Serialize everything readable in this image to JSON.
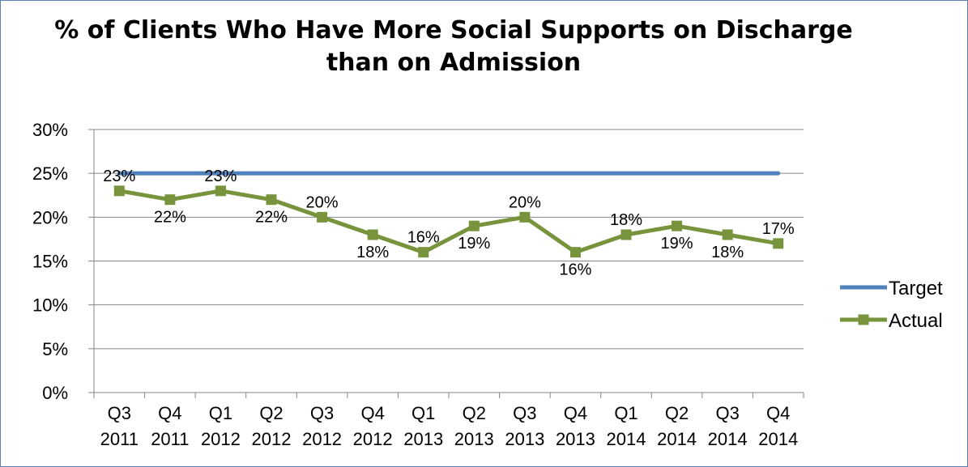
{
  "chart_data": {
    "type": "line",
    "title_lines": [
      "% of Clients Who Have More Social Supports on Discharge",
      "than on Admission"
    ],
    "categories": [
      [
        "Q3",
        "2011"
      ],
      [
        "Q4",
        "2011"
      ],
      [
        "Q1",
        "2012"
      ],
      [
        "Q2",
        "2012"
      ],
      [
        "Q3",
        "2012"
      ],
      [
        "Q4",
        "2012"
      ],
      [
        "Q1",
        "2013"
      ],
      [
        "Q2",
        "2013"
      ],
      [
        "Q3",
        "2013"
      ],
      [
        "Q4",
        "2013"
      ],
      [
        "Q1",
        "2014"
      ],
      [
        "Q2",
        "2014"
      ],
      [
        "Q3",
        "2014"
      ],
      [
        "Q4",
        "2014"
      ]
    ],
    "y_ticks": [
      "0%",
      "5%",
      "10%",
      "15%",
      "20%",
      "25%",
      "30%"
    ],
    "ylim": [
      0,
      30
    ],
    "grid": true,
    "legend_position": "right",
    "series": [
      {
        "name": "Target",
        "color": "#4f81bd",
        "marker": "none",
        "values": [
          25,
          25,
          25,
          25,
          25,
          25,
          25,
          25,
          25,
          25,
          25,
          25,
          25,
          25
        ]
      },
      {
        "name": "Actual",
        "color": "#77933c",
        "marker": "square",
        "values": [
          23,
          22,
          23,
          22,
          20,
          18,
          16,
          19,
          20,
          16,
          18,
          19,
          18,
          17
        ],
        "data_labels": [
          "23%",
          "22%",
          "23%",
          "22%",
          "20%",
          "18%",
          "16%",
          "19%",
          "20%",
          "16%",
          "18%",
          "19%",
          "18%",
          "17%"
        ],
        "label_positions": [
          "above",
          "below",
          "above",
          "below",
          "above",
          "below",
          "above",
          "below",
          "above",
          "below",
          "above",
          "below",
          "below",
          "above"
        ]
      }
    ]
  }
}
